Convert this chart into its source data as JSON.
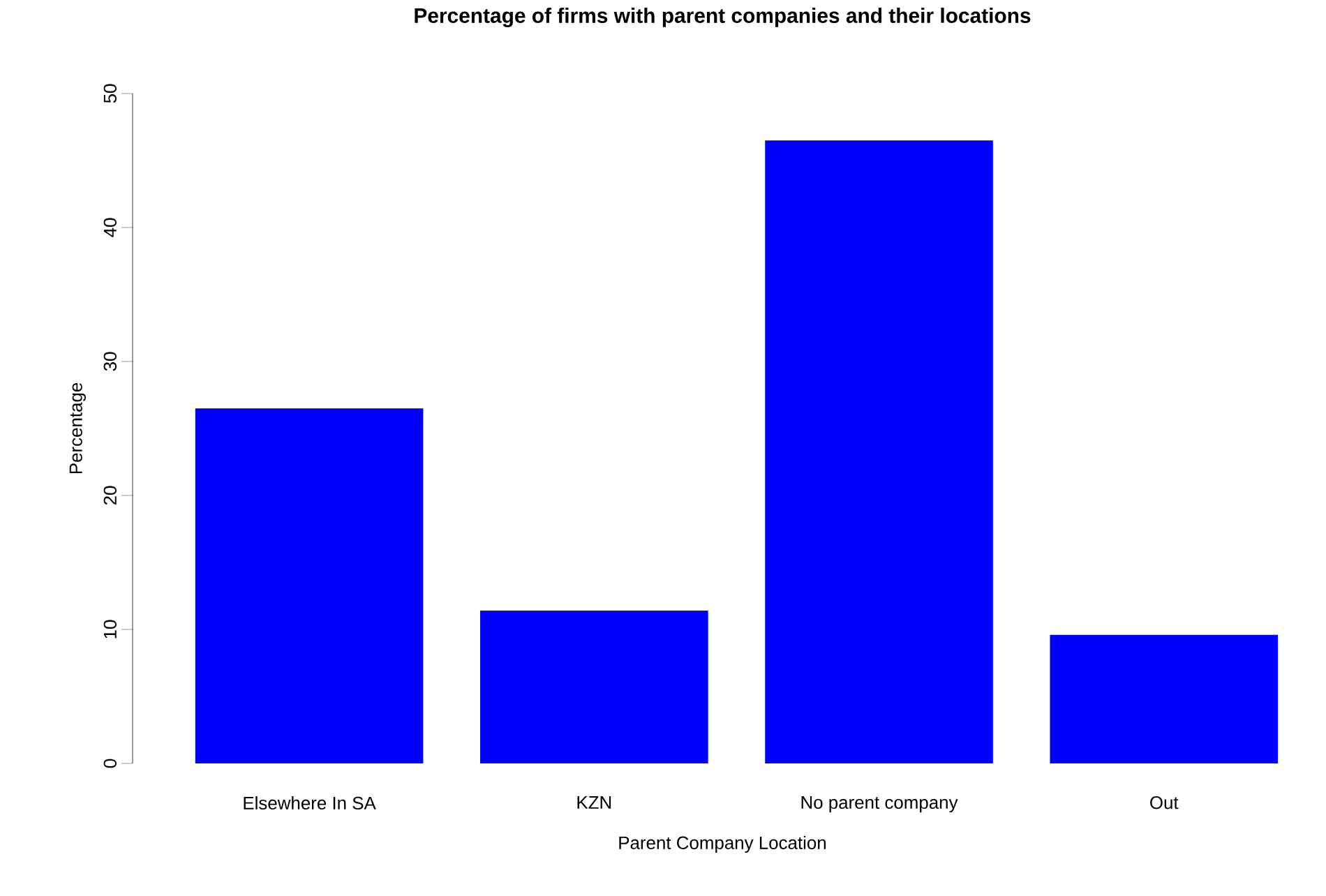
{
  "chart_data": {
    "type": "bar",
    "title": "Percentage of firms with parent companies and their locations",
    "xlabel": "Parent Company Location",
    "ylabel": "Percentage",
    "categories": [
      "Elsewhere In SA",
      "KZN",
      "No parent company",
      "Out"
    ],
    "values": [
      26.5,
      11.4,
      46.5,
      9.6
    ],
    "color": "#0000ff",
    "ylim": [
      0,
      50
    ],
    "yticks": [
      0,
      10,
      20,
      30,
      40,
      50
    ],
    "grid": false
  }
}
